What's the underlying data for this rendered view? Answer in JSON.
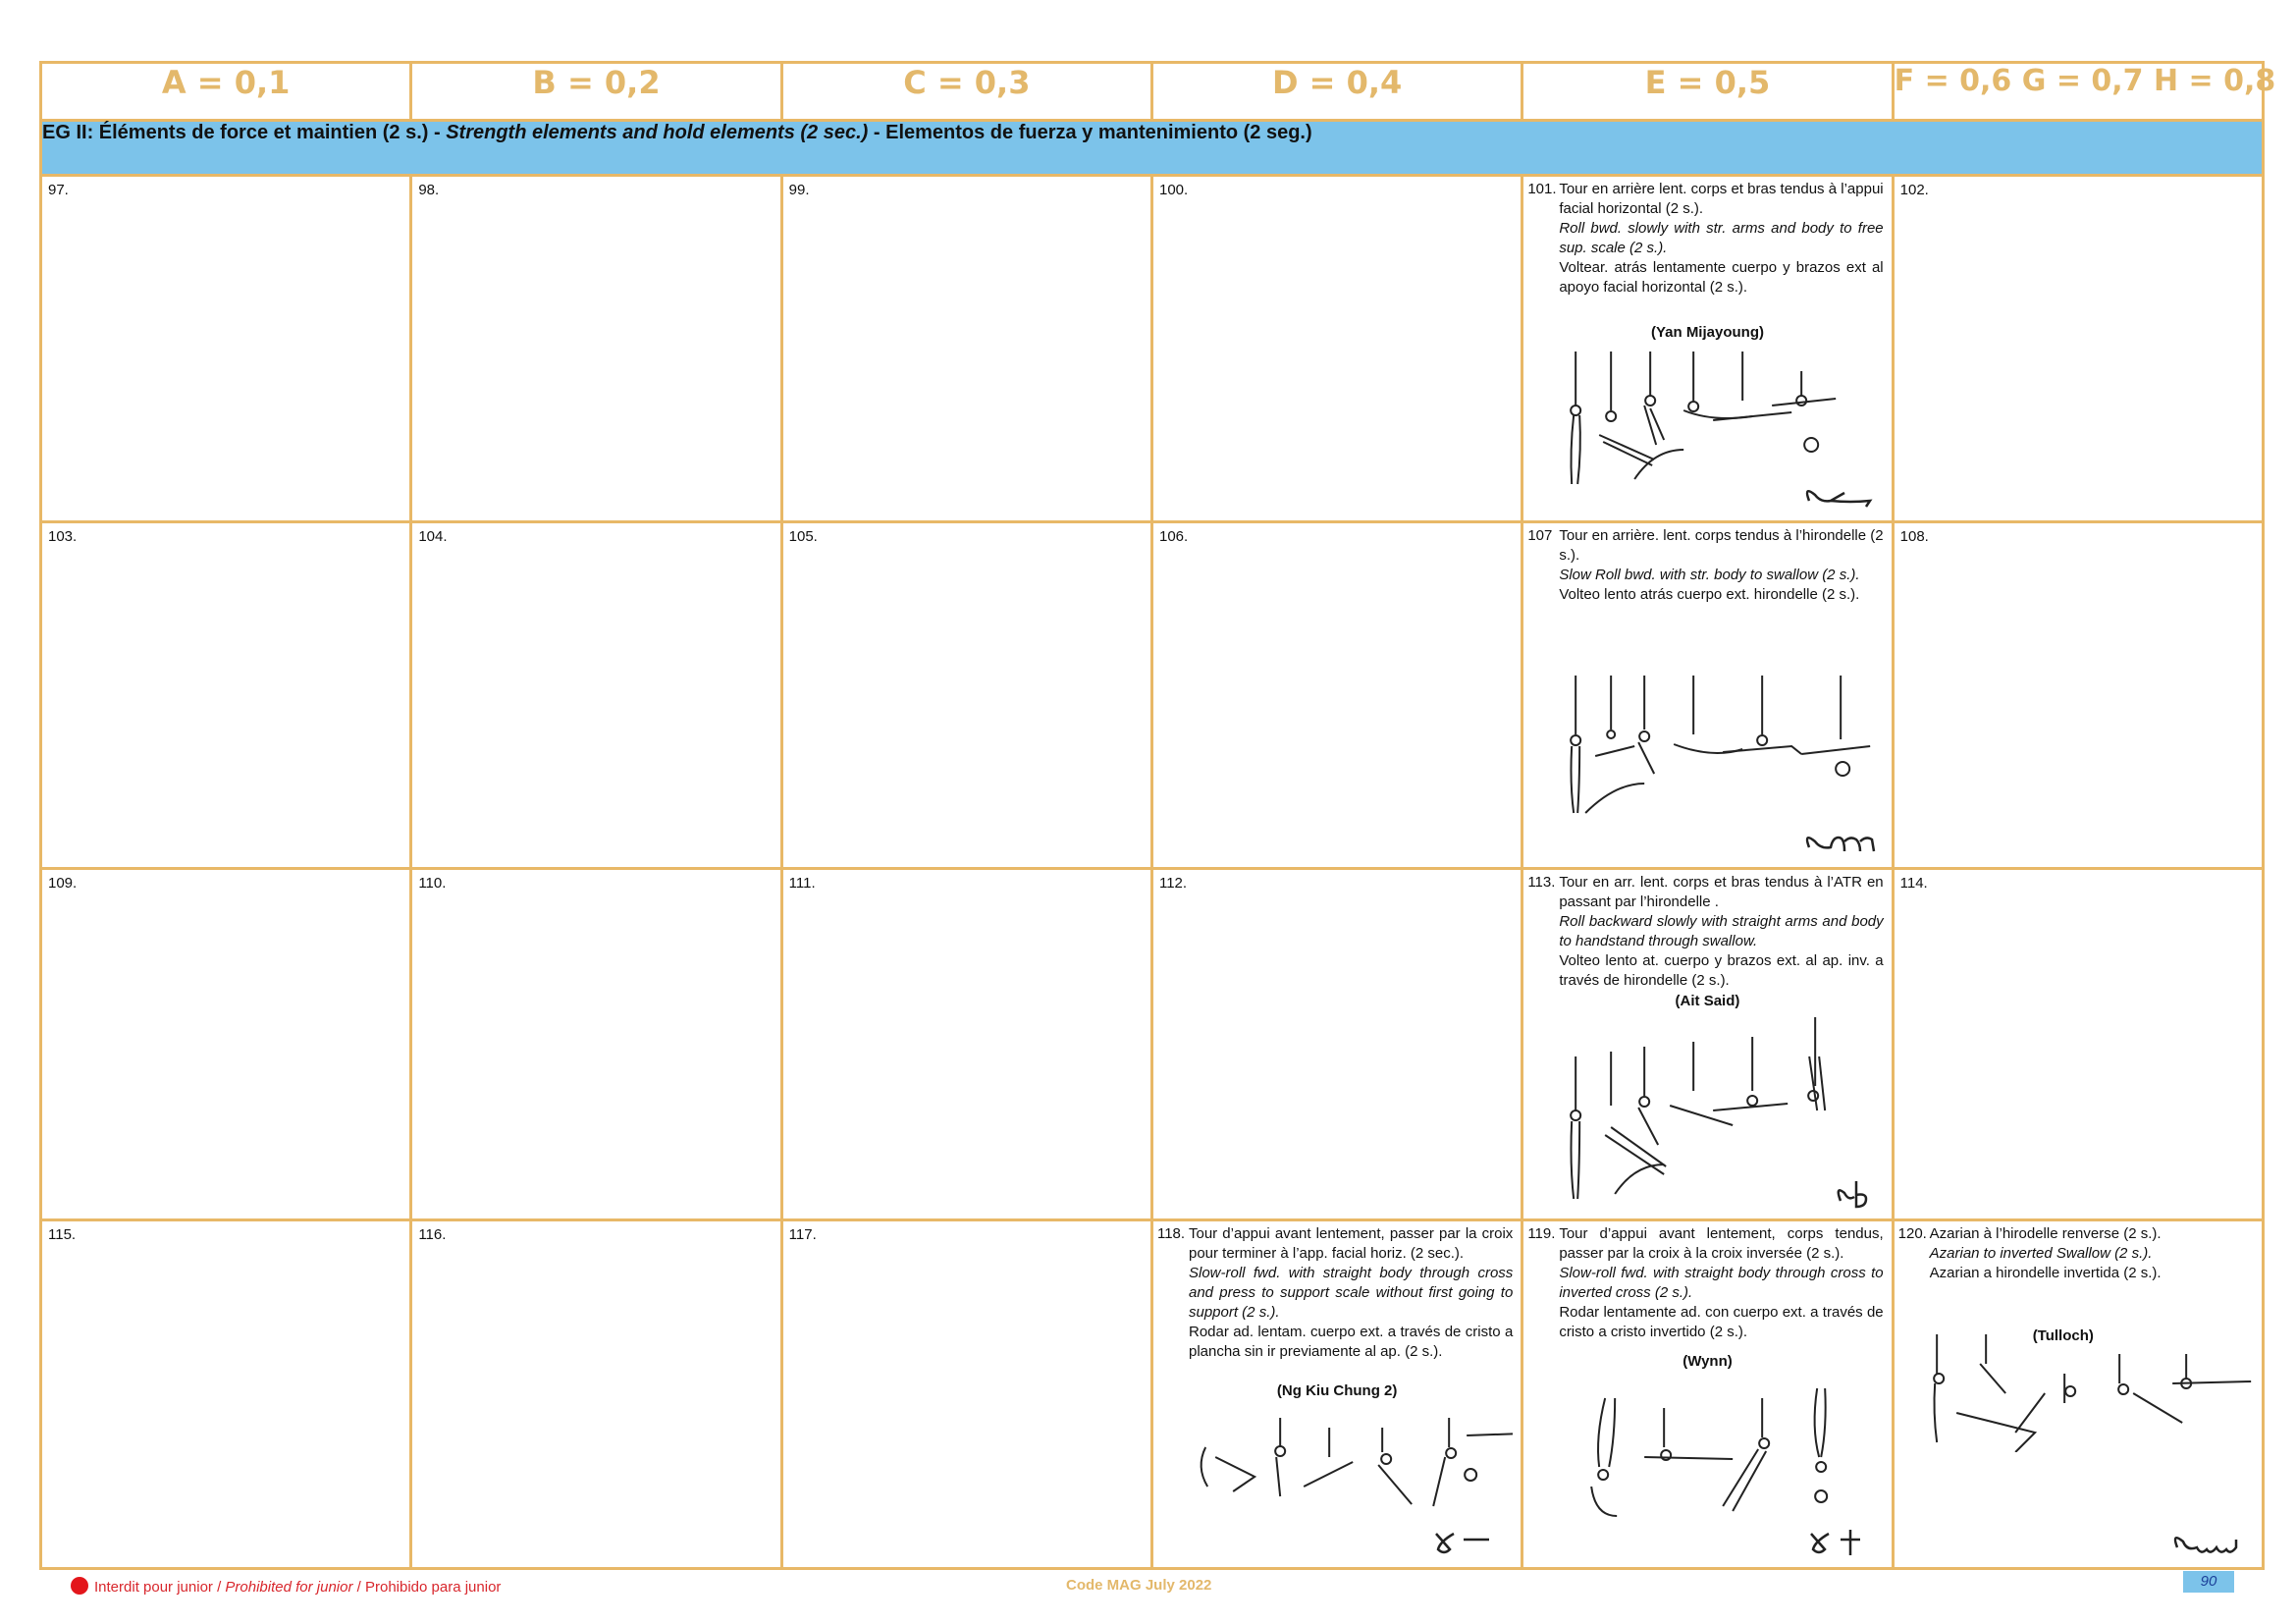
{
  "header": [
    "A = 0,1",
    "B = 0,2",
    "C = 0,3",
    "D = 0,4",
    "E = 0,5",
    "F = 0,6 G = 0,7 H = 0,8"
  ],
  "band": {
    "prefix": "EG II:  Éléments de force et maintien (2 s.) - ",
    "italic": "Strength elements and hold elements (2 sec.)",
    "suffix": " - Elementos de fuerza y mantenimiento (2 seg.)"
  },
  "rows": [
    {
      "cells": [
        "97.",
        "98.",
        "99.",
        "100.",
        null,
        "102."
      ],
      "e": {
        "num": "101.",
        "lines": [
          "Tour en arrière lent. corps et bras tendus à l’appui facial horizontal (2 s.).",
          "Roll bwd. slowly with str. arms and body to free sup. scale (2 s.).",
          "Voltear. atrás lentamente cuerpo y brazos ext al apoyo facial horizontal (2 s.)."
        ],
        "name": "(Yan Mijayoung)"
      }
    },
    {
      "cells": [
        "103.",
        "104.",
        "105.",
        "106.",
        null,
        "108."
      ],
      "e": {
        "num": "107",
        "lines": [
          "Tour en arrière. lent. corps tendus à l’hirondelle (2 s.).",
          "Slow Roll bwd. with str. body to swallow (2 s.).",
          "Volteo lento atrás cuerpo ext. hirondelle (2 s.)."
        ],
        "name": ""
      }
    },
    {
      "cells": [
        "109.",
        "110.",
        "111.",
        "112.",
        null,
        "114."
      ],
      "e": {
        "num": "113.",
        "lines": [
          "Tour en arr. lent. corps et bras tendus à l’ATR en passant par l’hirondelle .",
          "Roll backward slowly with straight arms and body to handstand through swallow.",
          "Volteo lento at. cuerpo y brazos ext. al ap. inv. a través de hirondelle (2 s.)."
        ],
        "name": "(Ait Said)"
      }
    },
    {
      "cells": [
        "115.",
        "116.",
        "117.",
        null,
        null,
        null
      ],
      "d": {
        "num": "118.",
        "lines": [
          "Tour d’appui avant lentement, passer par la croix pour terminer à l’app. facial horiz. (2 sec.).",
          "Slow-roll fwd. with straight body through cross and press to support scale without first going to support (2 s.).",
          "Rodar ad. lentam. cuerpo ext. a través de cristo a plancha sin ir previamente al ap. (2 s.)."
        ],
        "name": "(Ng Kiu Chung 2)"
      },
      "e": {
        "num": "119.",
        "lines": [
          "Tour d’appui avant lentement, corps tendus, passer par la croix à la croix inversée (2 s.).",
          "Slow-roll fwd. with straight body through cross to inverted cross (2 s.).",
          "Rodar lentamente ad. con cuerpo ext. a través de cristo a cristo invertido (2 s.)."
        ],
        "name": "(Wynn)"
      },
      "f": {
        "num": "120.",
        "lines": [
          "Azarian à l’hirodelle renverse (2 s.).",
          "Azarian to inverted Swallow (2 s.).",
          "Azarian a hirondelle invertida (2 s.)."
        ],
        "name": "(Tulloch)"
      }
    }
  ],
  "footer": {
    "left_1": "Interdit pour junior / ",
    "left_2": "Prohibited for junior",
    "left_3": " / Prohibido para junior",
    "center": "Code MAG July 2022",
    "page": "90"
  },
  "colors": {
    "border": "#e8b867",
    "header_text": "#e3b86b",
    "band": "#7cc3ea",
    "prohibited": "#e3161b"
  }
}
